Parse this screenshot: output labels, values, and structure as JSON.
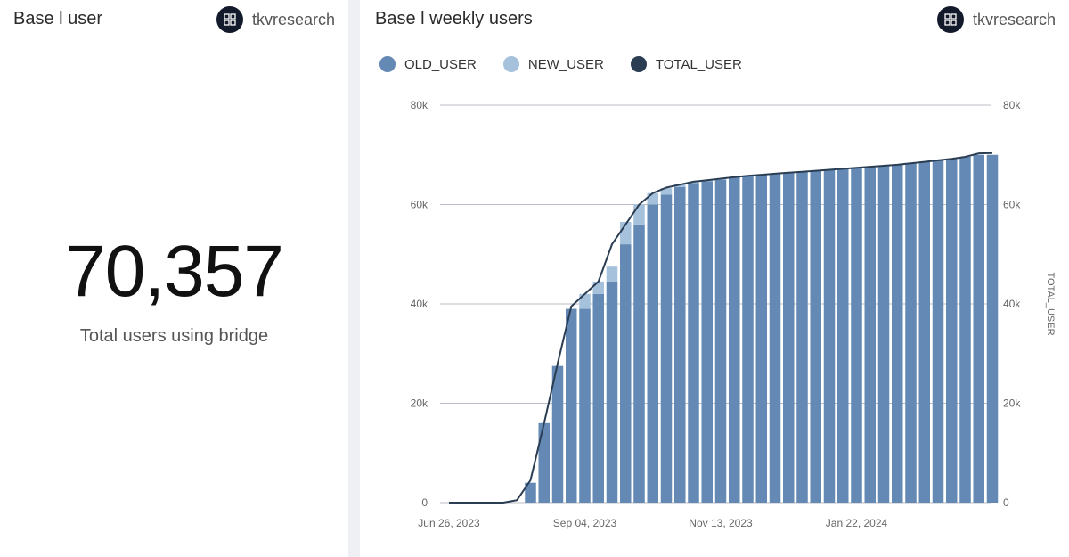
{
  "left_card": {
    "title": "Base l user",
    "brand": "tkvresearch",
    "big_number": "70,357",
    "caption": "Total users using bridge"
  },
  "right_card": {
    "title": "Base l weekly users",
    "brand": "tkvresearch"
  },
  "colors": {
    "old_user": "#6389b4",
    "new_user": "#a6c1dc",
    "total_user": "#2a3d52"
  },
  "chart_data": {
    "type": "bar",
    "stacked": true,
    "title": "Base l weekly users",
    "legend": [
      "OLD_USER",
      "NEW_USER",
      "TOTAL_USER"
    ],
    "legend_position": "top-left",
    "x_ticks": [
      "Jun 26, 2023",
      "Sep 04, 2023",
      "Nov 13, 2023",
      "Jan 22, 2024"
    ],
    "y_ticks": [
      "0",
      "20k",
      "40k",
      "60k",
      "80k"
    ],
    "y2_ticks": [
      "0",
      "20k",
      "40k",
      "60k",
      "80k"
    ],
    "y2label": "TOTAL_USER",
    "ylim": [
      0,
      80000
    ],
    "weeks": 41,
    "start_week": "Jun 26, 2023",
    "series": [
      {
        "name": "OLD_USER",
        "values": [
          0,
          0,
          0,
          0,
          0,
          0,
          4000,
          16000,
          27500,
          39000,
          39000,
          42000,
          44500,
          52000,
          56000,
          60000,
          62000,
          63500,
          64300,
          64700,
          65000,
          65500,
          65800,
          66000,
          66200,
          66400,
          66600,
          66800,
          67000,
          67200,
          67400,
          67600,
          67800,
          68000,
          68300,
          68600,
          68900,
          69200,
          69600,
          70000,
          70000
        ]
      },
      {
        "name": "NEW_USER",
        "values": [
          0,
          0,
          0,
          0,
          0,
          0,
          0,
          0,
          0,
          0,
          3000,
          2500,
          3000,
          4500,
          4000,
          2300,
          1300,
          600,
          300,
          200,
          200,
          0,
          0,
          0,
          0,
          0,
          0,
          0,
          0,
          0,
          0,
          0,
          0,
          0,
          0,
          0,
          0,
          0,
          0,
          0,
          0
        ]
      },
      {
        "name": "TOTAL_USER",
        "type": "line",
        "values": [
          0,
          0,
          0,
          0,
          0,
          500,
          4500,
          16000,
          28000,
          39500,
          42000,
          44500,
          52000,
          56000,
          60000,
          62300,
          63400,
          64000,
          64600,
          64900,
          65200,
          65500,
          65800,
          66000,
          66200,
          66400,
          66600,
          66800,
          67000,
          67200,
          67400,
          67600,
          67800,
          68000,
          68300,
          68600,
          68900,
          69200,
          69600,
          70300,
          70357
        ]
      }
    ]
  }
}
